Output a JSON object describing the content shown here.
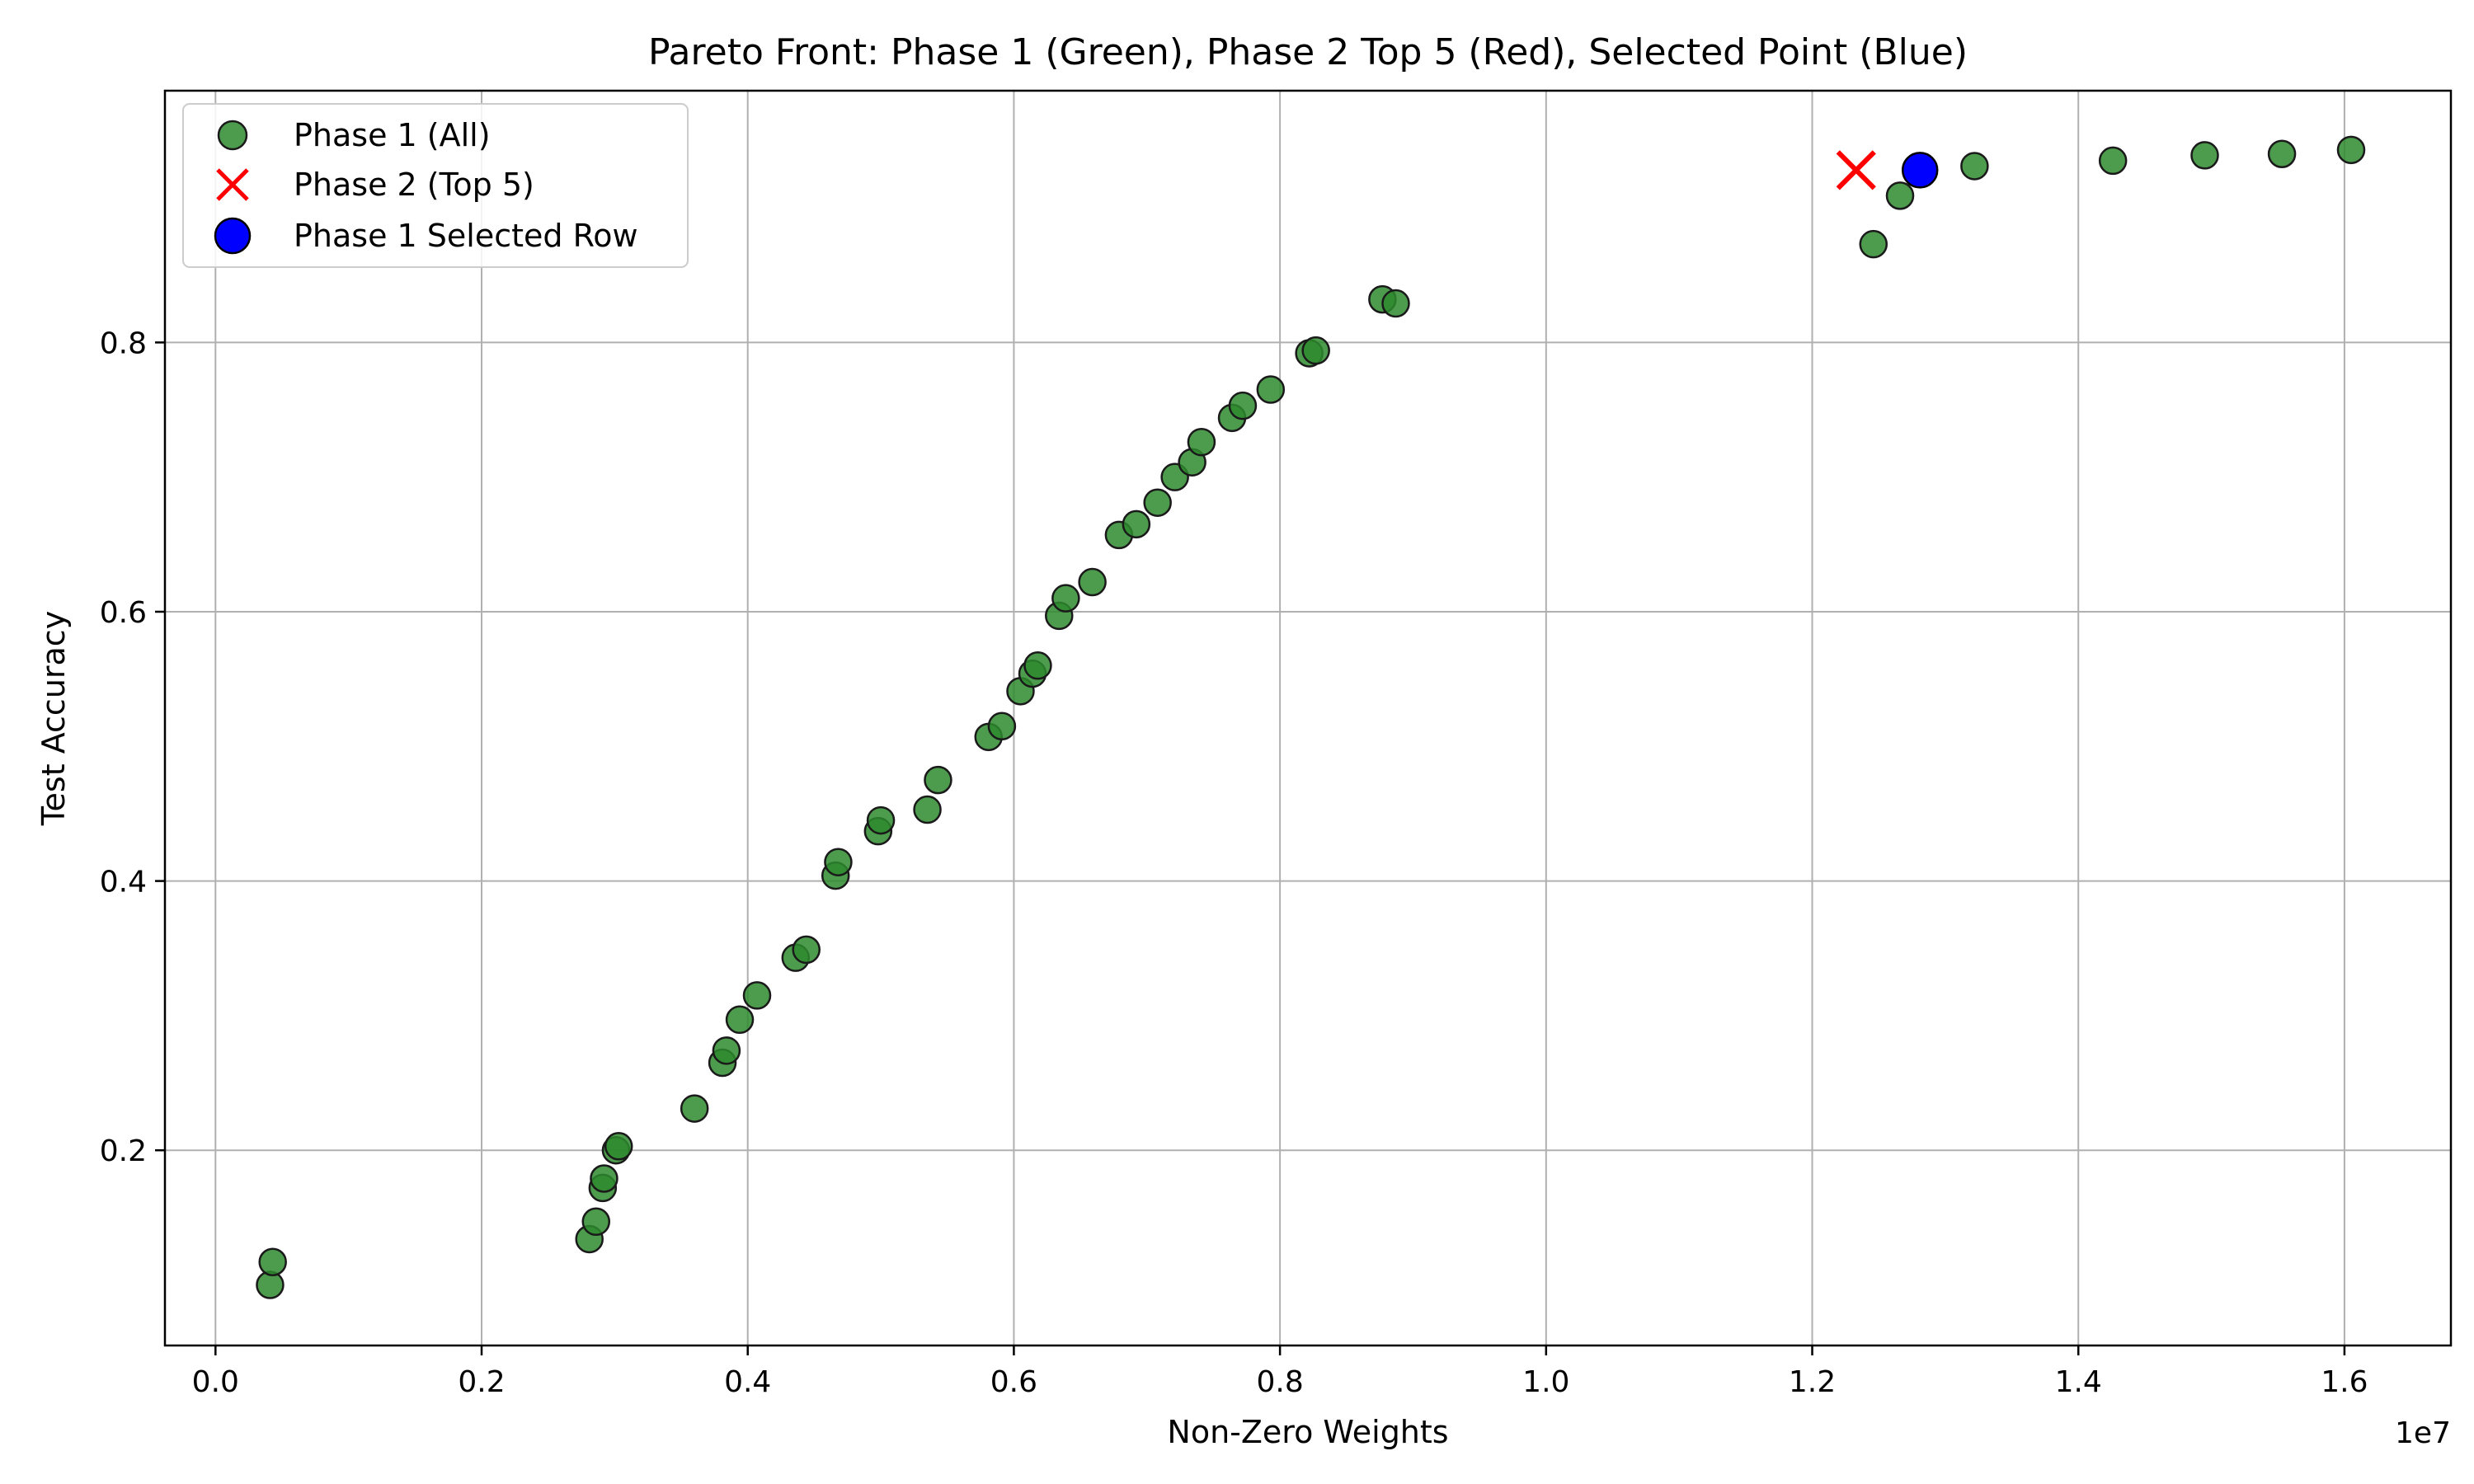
{
  "chart_data": {
    "type": "scatter",
    "title": "Pareto Front: Phase 1 (Green), Phase 2 Top 5 (Red), Selected Point (Blue)",
    "xlabel": "Non-Zero Weights",
    "ylabel": "Test Accuracy",
    "x_offset_label": "1e7",
    "xlim": [
      -0.038,
      1.68
    ],
    "ylim": [
      0.055,
      0.987
    ],
    "x_ticks": [
      0.0,
      0.2,
      0.4,
      0.6,
      0.8,
      1.0,
      1.2,
      1.4,
      1.6
    ],
    "x_tick_labels": [
      "0.0",
      "0.2",
      "0.4",
      "0.6",
      "0.8",
      "1.0",
      "1.2",
      "1.4",
      "1.6"
    ],
    "y_ticks": [
      0.2,
      0.4,
      0.6,
      0.8
    ],
    "y_tick_labels": [
      "0.2",
      "0.4",
      "0.6",
      "0.8"
    ],
    "grid": true,
    "legend_position": "top-left",
    "series": [
      {
        "name": "Phase 1 (All)",
        "marker": "circle",
        "color": "#2e8b2e",
        "edge_color": "#1a1a1a",
        "x": [
          0.041,
          0.043,
          0.281,
          0.286,
          0.291,
          0.292,
          0.301,
          0.303,
          0.36,
          0.381,
          0.384,
          0.394,
          0.407,
          0.436,
          0.444,
          0.466,
          0.468,
          0.498,
          0.5,
          0.535,
          0.543,
          0.581,
          0.591,
          0.605,
          0.614,
          0.618,
          0.634,
          0.639,
          0.659,
          0.679,
          0.692,
          0.708,
          0.721,
          0.734,
          0.741,
          0.764,
          0.772,
          0.793,
          0.822,
          0.827,
          0.877,
          0.887,
          1.246,
          1.266,
          1.322,
          1.426,
          1.495,
          1.553,
          1.605
        ],
        "y": [
          0.1,
          0.117,
          0.134,
          0.147,
          0.172,
          0.179,
          0.2,
          0.203,
          0.231,
          0.265,
          0.274,
          0.297,
          0.315,
          0.343,
          0.349,
          0.404,
          0.414,
          0.437,
          0.445,
          0.453,
          0.475,
          0.507,
          0.515,
          0.541,
          0.554,
          0.56,
          0.597,
          0.61,
          0.622,
          0.657,
          0.665,
          0.681,
          0.7,
          0.711,
          0.726,
          0.744,
          0.753,
          0.765,
          0.792,
          0.794,
          0.832,
          0.829,
          0.873,
          0.909,
          0.931,
          0.935,
          0.939,
          0.94,
          0.943
        ]
      },
      {
        "name": "Phase 2 (Top 5)",
        "marker": "x",
        "color": "#ff0000",
        "x": [
          1.233
        ],
        "y": [
          0.928
        ]
      },
      {
        "name": "Phase 1 Selected Row",
        "marker": "circle",
        "color": "#0000ff",
        "edge_color": "#000000",
        "x": [
          1.281
        ],
        "y": [
          0.928
        ]
      }
    ]
  }
}
